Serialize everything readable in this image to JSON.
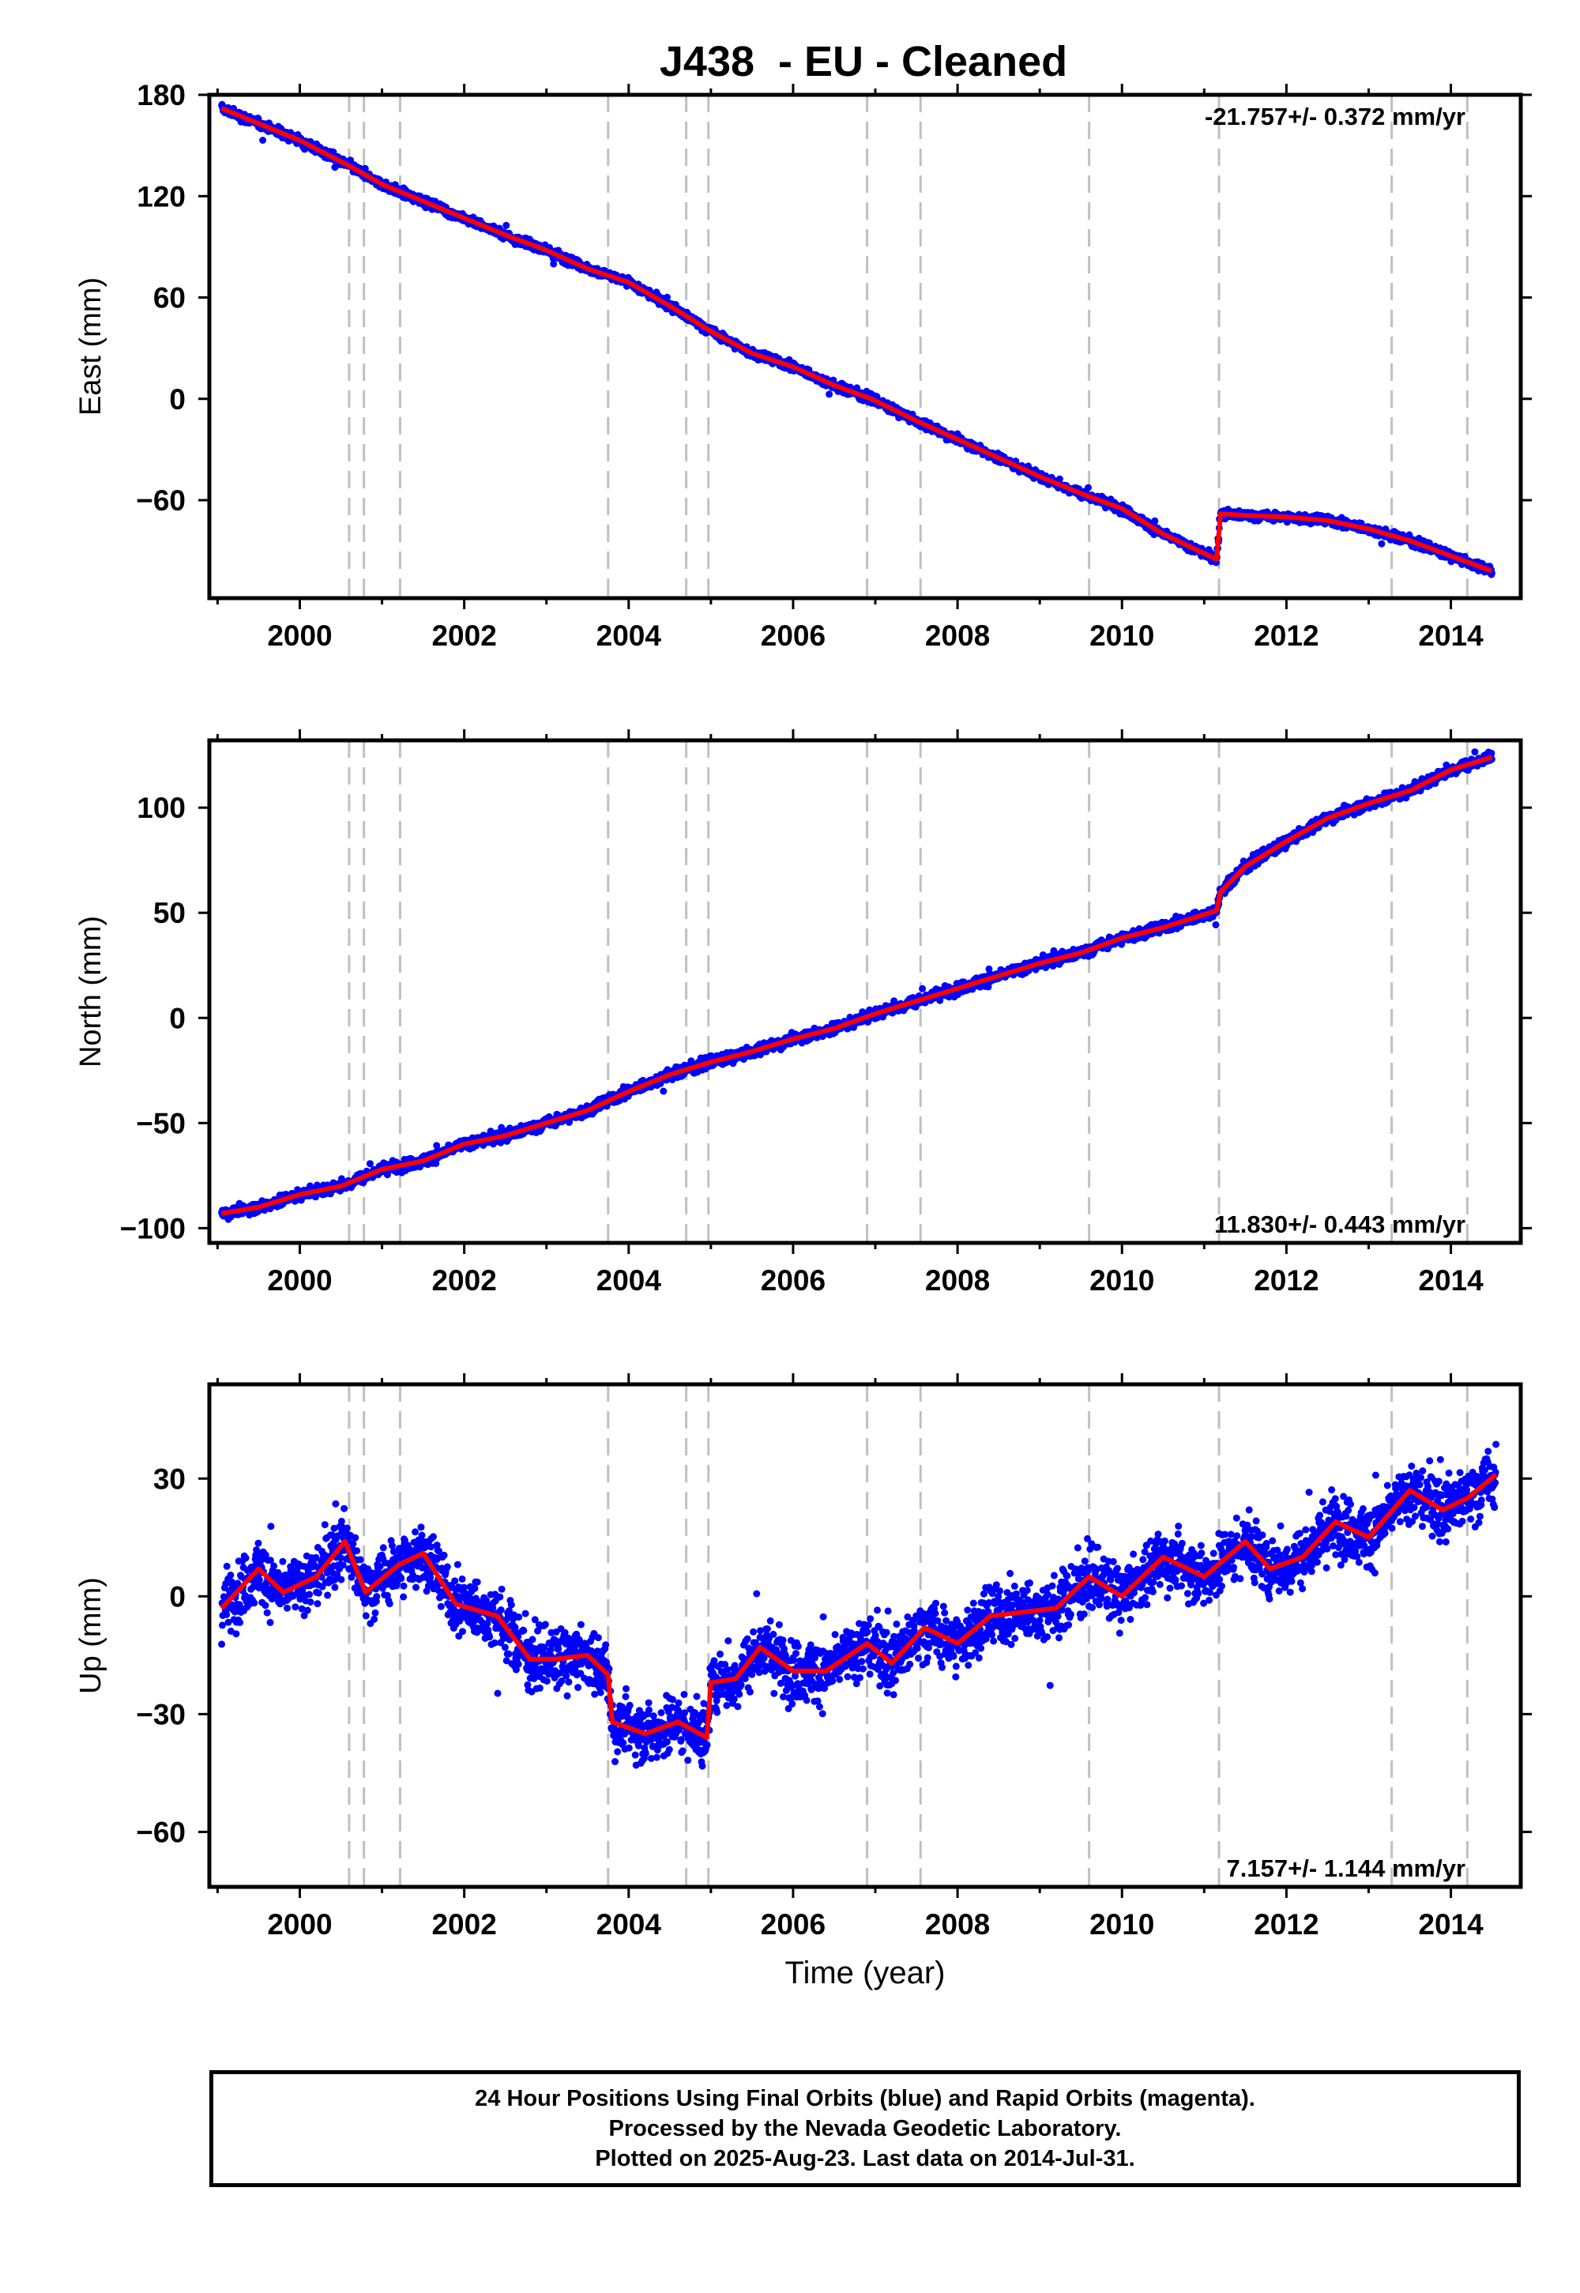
{
  "chart_data": [
    {
      "type": "scatter",
      "title": "J438  - EU - Cleaned",
      "xlabel": "",
      "ylabel": "East (mm)",
      "rate_label": "-21.757+/- 0.372 mm/yr",
      "xlim": [
        1998.9,
        2014.85
      ],
      "ylim": [
        -118,
        180
      ],
      "xticks": [
        "2000",
        "2002",
        "2004",
        "2006",
        "2008",
        "2010",
        "2012",
        "2014"
      ],
      "yticks": [
        "180",
        "120",
        "60",
        "0",
        "−60"
      ],
      "series": [
        {
          "role": "daily positions",
          "color": "#0000ff",
          "x": [
            1999.05,
            2000.0,
            2000.6,
            2001.0,
            2001.5,
            2002.0,
            2002.5,
            2003.0,
            2003.5,
            2003.75,
            2004.0,
            2004.5,
            2005.0,
            2005.5,
            2006.0,
            2006.5,
            2006.95,
            2007.5,
            2008.0,
            2008.5,
            2009.0,
            2009.5,
            2010.0,
            2010.5,
            2011.15,
            2011.2,
            2011.5,
            2012.0,
            2012.5,
            2013.0,
            2013.5,
            2014.0,
            2014.5
          ],
          "y": [
            172,
            153,
            138,
            127,
            117,
            107,
            97,
            88,
            77,
            73,
            69,
            55,
            40,
            27,
            19,
            8,
            0,
            -13,
            -24,
            -35,
            -46,
            -56,
            -65,
            -80,
            -95,
            -68,
            -69,
            -70,
            -72,
            -77,
            -84,
            -93,
            -102
          ]
        },
        {
          "role": "model fit",
          "color": "#ff0000",
          "x": [
            1999.05,
            2000.0,
            2000.6,
            2001.0,
            2001.5,
            2002.0,
            2002.5,
            2003.0,
            2003.5,
            2003.75,
            2004.0,
            2004.5,
            2005.0,
            2005.5,
            2006.0,
            2006.5,
            2006.95,
            2007.5,
            2008.0,
            2008.5,
            2009.0,
            2009.5,
            2010.0,
            2010.5,
            2011.15,
            2011.2,
            2011.5,
            2012.0,
            2012.5,
            2013.0,
            2013.5,
            2014.0,
            2014.5
          ],
          "y": [
            172,
            153,
            138,
            127,
            117,
            107,
            97,
            88,
            77,
            73,
            69,
            55,
            40,
            27,
            19,
            8,
            0,
            -13,
            -24,
            -35,
            -46,
            -56,
            -65,
            -80,
            -95,
            -68,
            -69,
            -70,
            -72,
            -77,
            -84,
            -93,
            -102
          ]
        }
      ]
    },
    {
      "type": "scatter",
      "title": "",
      "xlabel": "",
      "ylabel": "North (mm)",
      "rate_label": "11.830+/- 0.443 mm/yr",
      "xlim": [
        1998.9,
        2014.85
      ],
      "ylim": [
        -107,
        132
      ],
      "xticks": [
        "2000",
        "2002",
        "2004",
        "2006",
        "2008",
        "2010",
        "2012",
        "2014"
      ],
      "yticks": [
        "100",
        "50",
        "0",
        "−50",
        "−100"
      ],
      "series": [
        {
          "role": "daily positions",
          "color": "#0000ff",
          "x": [
            1999.05,
            1999.5,
            2000.0,
            2000.5,
            2001.0,
            2001.5,
            2002.0,
            2002.5,
            2003.0,
            2003.5,
            2004.0,
            2004.5,
            2005.0,
            2005.5,
            2006.0,
            2006.5,
            2007.0,
            2007.5,
            2008.0,
            2008.5,
            2009.0,
            2009.5,
            2010.0,
            2010.5,
            2011.15,
            2011.2,
            2011.5,
            2012.0,
            2012.5,
            2013.0,
            2013.5,
            2014.0,
            2014.5
          ],
          "y": [
            -93,
            -90,
            -84,
            -80,
            -72,
            -68,
            -60,
            -56,
            -50,
            -44,
            -35,
            -27,
            -21,
            -16,
            -10,
            -5,
            2,
            8,
            14,
            20,
            26,
            31,
            38,
            43,
            51,
            60,
            72,
            84,
            95,
            102,
            108,
            118,
            124
          ]
        },
        {
          "role": "model fit",
          "color": "#ff0000",
          "x": [
            1999.05,
            1999.5,
            2000.0,
            2000.5,
            2001.0,
            2001.5,
            2002.0,
            2002.5,
            2003.0,
            2003.5,
            2004.0,
            2004.5,
            2005.0,
            2005.5,
            2006.0,
            2006.5,
            2007.0,
            2007.5,
            2008.0,
            2008.5,
            2009.0,
            2009.5,
            2010.0,
            2010.5,
            2011.15,
            2011.2,
            2011.5,
            2012.0,
            2012.5,
            2013.0,
            2013.5,
            2014.0,
            2014.5
          ],
          "y": [
            -93,
            -90,
            -84,
            -80,
            -72,
            -68,
            -60,
            -56,
            -50,
            -44,
            -35,
            -27,
            -21,
            -16,
            -10,
            -5,
            2,
            8,
            14,
            20,
            26,
            31,
            38,
            43,
            51,
            60,
            72,
            84,
            95,
            102,
            108,
            118,
            124
          ]
        }
      ]
    },
    {
      "type": "scatter",
      "title": "",
      "xlabel": "Time (year)",
      "ylabel": "Up (mm)",
      "rate_label": "7.157+/- 1.144 mm/yr",
      "xlim": [
        1998.9,
        2014.85
      ],
      "ylim": [
        -74,
        54
      ],
      "xticks": [
        "2000",
        "2002",
        "2004",
        "2006",
        "2008",
        "2010",
        "2012",
        "2014"
      ],
      "yticks": [
        "30",
        "0",
        "−30",
        "−60"
      ],
      "series": [
        {
          "role": "daily positions",
          "color": "#0000ff",
          "x": [
            1999.05,
            1999.5,
            1999.8,
            2000.2,
            2000.55,
            2000.8,
            2001.2,
            2001.5,
            2001.9,
            2002.4,
            2002.8,
            2003.1,
            2003.5,
            2003.75,
            2003.8,
            2004.2,
            2004.6,
            2004.95,
            2005.0,
            2005.3,
            2005.6,
            2006.0,
            2006.4,
            2006.9,
            2007.2,
            2007.6,
            2008.0,
            2008.4,
            2008.8,
            2009.2,
            2009.6,
            2010.0,
            2010.5,
            2011.0,
            2011.5,
            2011.8,
            2012.2,
            2012.6,
            2013.0,
            2013.5,
            2013.9,
            2014.2,
            2014.55
          ],
          "y": [
            -3,
            7,
            1,
            5,
            14,
            1,
            8,
            11,
            -2,
            -5,
            -16,
            -16,
            -15,
            -20,
            -32,
            -35,
            -32,
            -36,
            -22,
            -21,
            -13,
            -19,
            -19,
            -12,
            -17,
            -8,
            -12,
            -5,
            -4,
            -3,
            5,
            0,
            10,
            5,
            14,
            7,
            10,
            19,
            15,
            27,
            22,
            25,
            31
          ]
        },
        {
          "role": "model fit",
          "color": "#ff0000",
          "x": [
            1999.05,
            1999.5,
            1999.8,
            2000.2,
            2000.55,
            2000.8,
            2001.2,
            2001.5,
            2001.9,
            2002.4,
            2002.8,
            2003.1,
            2003.5,
            2003.75,
            2003.8,
            2004.2,
            2004.6,
            2004.95,
            2005.0,
            2005.3,
            2005.6,
            2006.0,
            2006.4,
            2006.9,
            2007.2,
            2007.6,
            2008.0,
            2008.4,
            2008.8,
            2009.2,
            2009.6,
            2010.0,
            2010.5,
            2011.0,
            2011.5,
            2011.8,
            2012.2,
            2012.6,
            2013.0,
            2013.5,
            2013.9,
            2014.2,
            2014.55
          ],
          "y": [
            -3,
            7,
            1,
            5,
            14,
            1,
            8,
            11,
            -2,
            -5,
            -16,
            -16,
            -15,
            -20,
            -32,
            -35,
            -32,
            -36,
            -22,
            -21,
            -13,
            -19,
            -19,
            -12,
            -17,
            -8,
            -12,
            -5,
            -4,
            -3,
            5,
            0,
            10,
            5,
            14,
            7,
            10,
            19,
            15,
            27,
            22,
            25,
            31
          ]
        }
      ]
    }
  ],
  "equipment_change_years": [
    2000.6,
    2000.78,
    2001.22,
    2003.75,
    2004.7,
    2004.97,
    2006.9,
    2007.55,
    2009.6,
    2011.18,
    2013.28,
    2014.2
  ],
  "colors": {
    "data": "#0000ff",
    "model": "#ff0000",
    "event_lines": "#c0c0c0",
    "frame": "#000000"
  },
  "footer": {
    "line1": "24 Hour Positions Using Final Orbits (blue) and Rapid Orbits (magenta).",
    "line2": "Processed by the Nevada Geodetic Laboratory.",
    "line3": "Plotted on 2025-Aug-23. Last data on 2014-Jul-31."
  }
}
